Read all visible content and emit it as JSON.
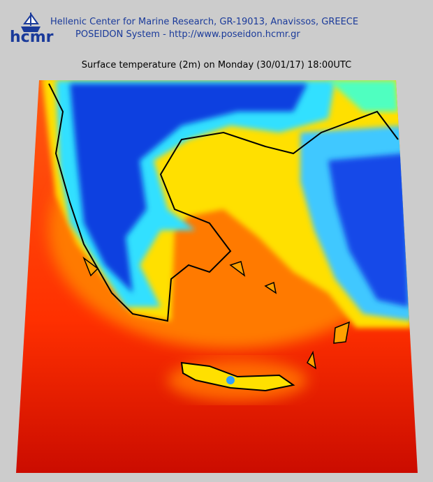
{
  "header": {
    "logo": "hcmr",
    "line1": "Hellenic Center for Marine Research, GR-19013, Anavissos, GREECE",
    "line2": "POSEIDON System - http://www.poseidon.hcmr.gr"
  },
  "title": "Surface temperature (2m) on Monday (30/01/17) 18:00UTC"
}
